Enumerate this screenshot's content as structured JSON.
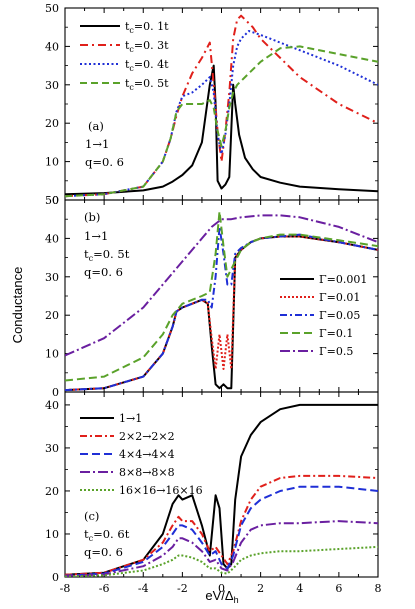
{
  "chart_data": [
    {
      "type": "line",
      "panel_label": "(a)",
      "annotations": [
        "1→1",
        "q=0. 6"
      ],
      "xlim": [
        -8,
        8
      ],
      "ylim": [
        0,
        50
      ],
      "yticks": [
        0,
        10,
        20,
        30,
        40,
        50
      ],
      "legend_position": "top-left",
      "series": [
        {
          "name": "t_c=0. 1t",
          "color": "#000000",
          "dash": "solid",
          "x": [
            -8,
            -6,
            -4,
            -3,
            -2.5,
            -2.3,
            -2,
            -1.5,
            -1,
            -0.6,
            -0.4,
            -0.3,
            -0.2,
            0,
            0.2,
            0.4,
            0.6,
            0.7,
            0.9,
            1.2,
            1.6,
            2,
            3,
            4,
            6,
            8
          ],
          "y": [
            1.5,
            1.8,
            2.5,
            3.5,
            4.8,
            5.5,
            6.5,
            9,
            15,
            30,
            35,
            25,
            5,
            3,
            4,
            6,
            30,
            25,
            17,
            11,
            8,
            6,
            4.5,
            3.5,
            2.8,
            2.3
          ]
        },
        {
          "name": "t_c=0. 3t",
          "color": "#e0201b",
          "dash": "8,4,2,4",
          "x": [
            -8,
            -6,
            -4,
            -3,
            -2.6,
            -2.3,
            -2,
            -1.5,
            -1,
            -0.6,
            -0.4,
            -0.2,
            0,
            0.2,
            0.4,
            0.6,
            0.8,
            1,
            1.2,
            1.6,
            2,
            3,
            4,
            6,
            8
          ],
          "y": [
            1,
            1.5,
            3.5,
            10,
            16,
            22,
            27,
            33,
            37,
            41,
            30,
            18,
            10,
            18,
            28,
            42,
            47,
            48,
            47,
            45,
            42,
            37,
            32,
            25,
            20
          ]
        },
        {
          "name": "t_c=0. 4t",
          "color": "#1f2fd6",
          "dash": "2,2.5",
          "x": [
            -8,
            -6,
            -4,
            -3,
            -2.6,
            -2.3,
            -2,
            -1.5,
            -1,
            -0.6,
            -0.4,
            -0.2,
            0,
            0.2,
            0.4,
            0.6,
            0.8,
            1,
            1.4,
            2,
            3,
            4,
            6,
            8
          ],
          "y": [
            1,
            1.5,
            3.5,
            10,
            16,
            23,
            27,
            28,
            30,
            32,
            28,
            17,
            12,
            17,
            25,
            35,
            40,
            42,
            44,
            43,
            41,
            39,
            35,
            30
          ]
        },
        {
          "name": "t_c=0. 5t",
          "color": "#5aa22a",
          "dash": "7,4",
          "x": [
            -8,
            -6,
            -4,
            -3,
            -2.6,
            -2.3,
            -2,
            -1.5,
            -1,
            -0.6,
            -0.4,
            -0.2,
            0,
            0.2,
            0.4,
            0.6,
            0.8,
            1,
            1.4,
            2,
            3,
            4,
            6,
            8
          ],
          "y": [
            1,
            1.5,
            3.5,
            10,
            16,
            23,
            25,
            25,
            25,
            26,
            24,
            18,
            14,
            18,
            24,
            28,
            30,
            31,
            33,
            36,
            39.5,
            40,
            38,
            36
          ]
        }
      ]
    },
    {
      "type": "line",
      "panel_label": "(b)",
      "annotations": [
        "1→1",
        "t_c=0. 5t",
        "q=0. 6"
      ],
      "xlim": [
        -8,
        8
      ],
      "ylim": [
        0,
        50
      ],
      "yticks": [
        0,
        10,
        20,
        30,
        40,
        50
      ],
      "legend_position": "right",
      "series": [
        {
          "name": "Γ=0.001",
          "color": "#000000",
          "dash": "solid",
          "x": [
            -8,
            -6,
            -4,
            -3,
            -2.5,
            -2.3,
            -2,
            -1.5,
            -1,
            -0.7,
            -0.5,
            -0.3,
            -0.1,
            0.1,
            0.3,
            0.5,
            0.7,
            1,
            1.5,
            2,
            3,
            4,
            6,
            8
          ],
          "y": [
            0.5,
            1,
            4,
            10,
            17,
            21,
            22,
            23,
            24,
            23,
            12,
            2,
            1,
            2,
            1,
            1,
            35,
            37,
            39,
            40,
            40.5,
            40.5,
            39,
            37
          ]
        },
        {
          "name": "Γ=0.01",
          "color": "#e0201b",
          "dash": "2,2",
          "x": [
            -8,
            -6,
            -4,
            -3,
            -2.5,
            -2.3,
            -2,
            -1.5,
            -1,
            -0.7,
            -0.5,
            -0.3,
            -0.1,
            0.1,
            0.3,
            0.5,
            0.7,
            1,
            1.5,
            2,
            3,
            4,
            6,
            8
          ],
          "y": [
            0.5,
            1,
            4,
            10,
            17,
            21,
            22,
            23,
            24,
            23,
            14,
            6,
            15,
            6,
            15,
            6,
            35,
            37,
            39,
            40,
            40.5,
            40.5,
            39,
            37
          ]
        },
        {
          "name": "Γ=0.05",
          "color": "#1f2fd6",
          "dash": "7,3,2,3",
          "x": [
            -8,
            -6,
            -4,
            -3,
            -2.5,
            -2.3,
            -2,
            -1.5,
            -1,
            -0.7,
            -0.5,
            -0.3,
            -0.1,
            0.1,
            0.3,
            0.5,
            0.7,
            1,
            1.5,
            2,
            3,
            4,
            6,
            8
          ],
          "y": [
            0.5,
            1,
            4,
            10,
            17,
            21,
            22,
            23,
            24,
            24,
            22,
            30,
            43,
            36,
            28,
            28,
            36,
            37.5,
            39,
            40,
            40.5,
            41,
            39,
            37
          ]
        },
        {
          "name": "Γ=0.1",
          "color": "#5aa22a",
          "dash": "8,4",
          "x": [
            -8,
            -6,
            -4,
            -3,
            -2.5,
            -2,
            -1.5,
            -1,
            -0.6,
            -0.3,
            -0.1,
            0.1,
            0.3,
            0.6,
            1,
            1.5,
            2,
            3,
            4,
            6,
            8
          ],
          "y": [
            3,
            4,
            9,
            15,
            20,
            23,
            24,
            25,
            26,
            36,
            47,
            38,
            30,
            33,
            37,
            39,
            40,
            41,
            41,
            39.5,
            38
          ]
        },
        {
          "name": "Γ=0.5",
          "color": "#6a1fa0",
          "dash": "10,3,2,3",
          "x": [
            -8,
            -6,
            -4,
            -3,
            -2,
            -1,
            -0.5,
            0,
            0.5,
            1,
            2,
            3,
            4,
            6,
            8
          ],
          "y": [
            9.5,
            14,
            22,
            28,
            34,
            40,
            43,
            45,
            45,
            45.5,
            46,
            46,
            45.5,
            43,
            39
          ]
        }
      ]
    },
    {
      "type": "line",
      "panel_label": "(c)",
      "annotations": [
        "t_c=0. 6t",
        "q=0. 6"
      ],
      "xlim": [
        -8,
        8
      ],
      "ylim": [
        0,
        43
      ],
      "yticks": [
        0,
        10,
        20,
        30,
        40
      ],
      "xticks": [
        -8,
        -6,
        -4,
        -2,
        0,
        2,
        4,
        6,
        8
      ],
      "xlabel": "eV/Δ_h",
      "ylabel": "Conductance",
      "legend_position": "top-left",
      "series": [
        {
          "name": "1→1",
          "color": "#000000",
          "dash": "solid",
          "x": [
            -8,
            -6,
            -4,
            -3,
            -2.5,
            -2.2,
            -2,
            -1.5,
            -1,
            -0.6,
            -0.3,
            -0.1,
            0.1,
            0.3,
            0.5,
            0.7,
            1,
            1.5,
            2,
            3,
            4,
            6,
            8
          ],
          "y": [
            0.5,
            1,
            4,
            10,
            17,
            19,
            18,
            19,
            12,
            5,
            19,
            16,
            3,
            2,
            3,
            18,
            28,
            33,
            36,
            39,
            40,
            40,
            40
          ]
        },
        {
          "name": "2×2→2×2",
          "color": "#e0201b",
          "dash": "7,3,2,3",
          "x": [
            -8,
            -6,
            -4,
            -3,
            -2.5,
            -2.2,
            -2,
            -1.5,
            -1,
            -0.6,
            -0.3,
            0,
            0.3,
            0.6,
            1,
            1.5,
            2,
            3,
            4,
            6,
            8
          ],
          "y": [
            0.5,
            1,
            4,
            8,
            12,
            14,
            13,
            13,
            10,
            6,
            7,
            5,
            3,
            6,
            13,
            18,
            21,
            23,
            23.5,
            23.5,
            23
          ]
        },
        {
          "name": "4×4→4×4",
          "color": "#1f2fd6",
          "dash": "8,4",
          "x": [
            -8,
            -6,
            -4,
            -3,
            -2.5,
            -2.2,
            -2,
            -1.5,
            -1,
            -0.6,
            -0.3,
            0,
            0.3,
            0.6,
            1,
            1.5,
            2,
            3,
            4,
            6,
            8
          ],
          "y": [
            0.3,
            0.8,
            3.5,
            7,
            10,
            12,
            12,
            11,
            8,
            5,
            6,
            3,
            2,
            5,
            12,
            16,
            18,
            20,
            21,
            21,
            20
          ]
        },
        {
          "name": "8×8→8×8",
          "color": "#6a1fa0",
          "dash": "10,3,2,3",
          "x": [
            -8,
            -6,
            -4,
            -3,
            -2.5,
            -2.2,
            -2,
            -1.5,
            -1,
            -0.6,
            -0.3,
            0,
            0.3,
            0.6,
            1,
            1.5,
            2,
            3,
            4,
            6,
            8
          ],
          "y": [
            0.2,
            0.6,
            2.5,
            5,
            7,
            9,
            9,
            8,
            6,
            3.5,
            4,
            2,
            1.5,
            3.5,
            8,
            11,
            12,
            12.5,
            12.5,
            13,
            12.5
          ]
        },
        {
          "name": "16×16→16×16",
          "color": "#5aa22a",
          "dash": "2,2",
          "x": [
            -8,
            -6,
            -4,
            -3,
            -2.5,
            -2.2,
            -2,
            -1.5,
            -1,
            -0.6,
            -0.3,
            0,
            0.3,
            0.6,
            1,
            1.5,
            2,
            3,
            4,
            6,
            8
          ],
          "y": [
            0.1,
            0.4,
            1.5,
            3,
            4,
            5,
            5,
            4.5,
            3.5,
            2,
            2,
            1,
            0.8,
            2,
            4,
            5,
            5.5,
            6,
            6,
            6.5,
            7
          ]
        }
      ]
    }
  ]
}
